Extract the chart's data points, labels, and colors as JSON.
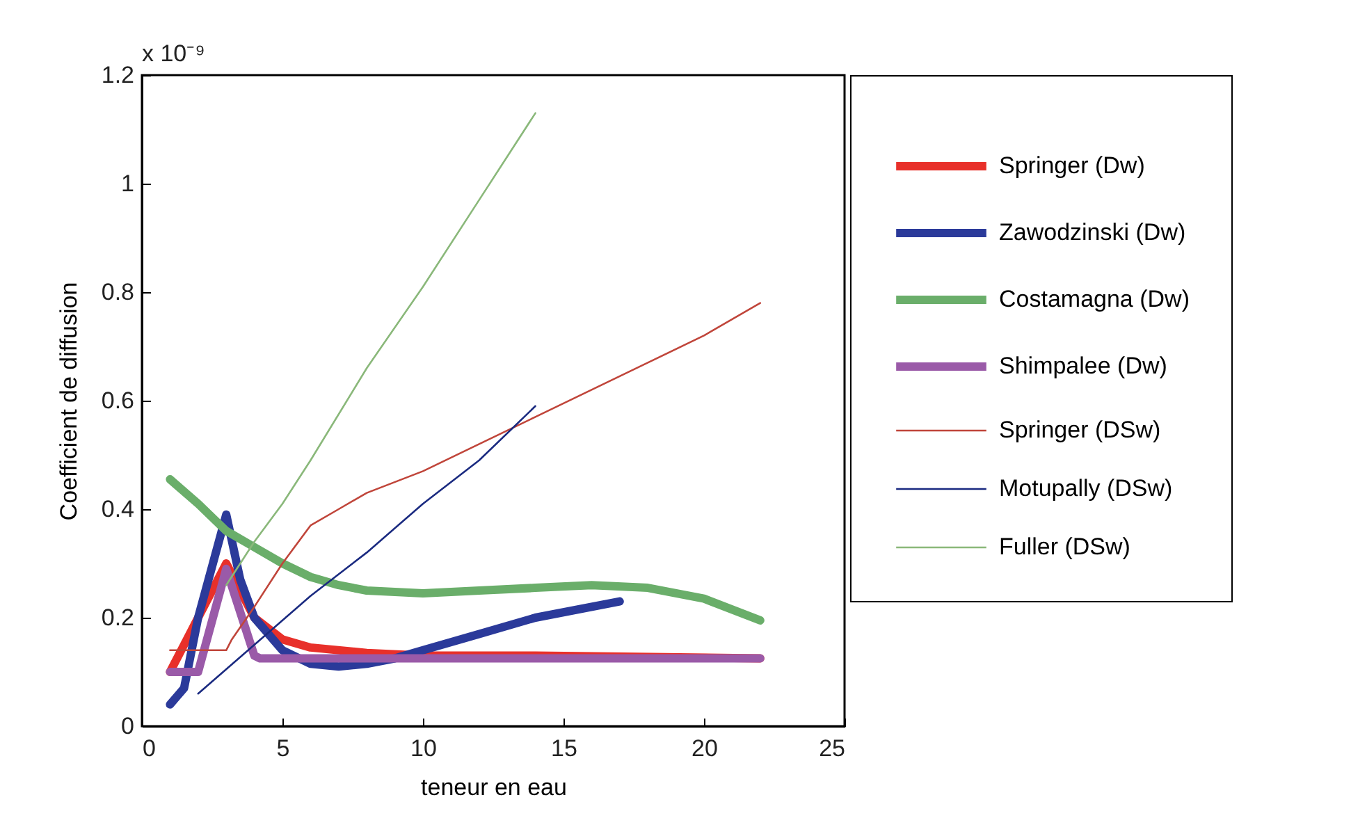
{
  "chart_data": {
    "type": "line",
    "xlabel": "teneur en eau",
    "ylabel": "Coefficient de diffusion",
    "annotations": [
      "x 10⁻⁹"
    ],
    "xlim": [
      0,
      25
    ],
    "xticks": [
      0,
      5,
      10,
      15,
      20,
      25
    ],
    "ylim": [
      0,
      1.2
    ],
    "yticks": [
      0,
      0.2,
      0.4,
      0.6,
      0.8,
      1,
      1.2
    ],
    "grid": false,
    "legend": "right",
    "marker": "none",
    "line_style": "solid",
    "series": [
      {
        "name": "Springer (Dw)",
        "color": "#e8302a",
        "x": [
          1,
          2,
          3,
          4,
          5,
          6,
          8,
          10,
          14,
          22
        ],
        "values": [
          0.1,
          0.2,
          0.3,
          0.2,
          0.16,
          0.145,
          0.135,
          0.13,
          0.13,
          0.125
        ]
      },
      {
        "name": "Zawodzinski (Dw)",
        "color": "#2b3a9a",
        "x": [
          1,
          1.5,
          2,
          3,
          3.5,
          4,
          5,
          6,
          7,
          8,
          9,
          10,
          12,
          14,
          17
        ],
        "values": [
          0.04,
          0.07,
          0.2,
          0.39,
          0.27,
          0.2,
          0.14,
          0.115,
          0.11,
          0.115,
          0.125,
          0.14,
          0.17,
          0.2,
          0.23
        ]
      },
      {
        "name": "Costamagna (Dw)",
        "color": "#6aae6a",
        "x": [
          1,
          2,
          3,
          4,
          5,
          6,
          7,
          8,
          10,
          12,
          14,
          16,
          18,
          20,
          22
        ],
        "values": [
          0.455,
          0.41,
          0.36,
          0.33,
          0.3,
          0.275,
          0.26,
          0.25,
          0.245,
          0.25,
          0.255,
          0.26,
          0.255,
          0.235,
          0.195
        ]
      },
      {
        "name": "Shimpalee (Dw)",
        "color": "#9a5aa8",
        "x": [
          1,
          2,
          3,
          4,
          4.2,
          22
        ],
        "values": [
          0.1,
          0.1,
          0.29,
          0.13,
          0.125,
          0.125
        ]
      },
      {
        "name": "Springer (DSw)",
        "color": "#c0453a",
        "x": [
          1,
          3,
          3.2,
          4,
          5,
          6,
          7,
          8,
          10,
          12,
          14,
          16,
          18,
          20,
          22
        ],
        "values": [
          0.14,
          0.14,
          0.16,
          0.22,
          0.3,
          0.37,
          0.4,
          0.43,
          0.47,
          0.52,
          0.57,
          0.62,
          0.67,
          0.72,
          0.78
        ]
      },
      {
        "name": "Motupally (DSw)",
        "color": "#1a2a80",
        "x": [
          2,
          4,
          6,
          8,
          10,
          12,
          14
        ],
        "values": [
          0.06,
          0.15,
          0.24,
          0.32,
          0.41,
          0.49,
          0.59
        ]
      },
      {
        "name": "Fuller (DSw)",
        "color": "#8ab87a",
        "x": [
          3,
          4,
          5,
          6,
          8,
          10,
          12,
          14
        ],
        "values": [
          0.26,
          0.34,
          0.41,
          0.49,
          0.66,
          0.81,
          0.97,
          1.13
        ]
      }
    ]
  }
}
